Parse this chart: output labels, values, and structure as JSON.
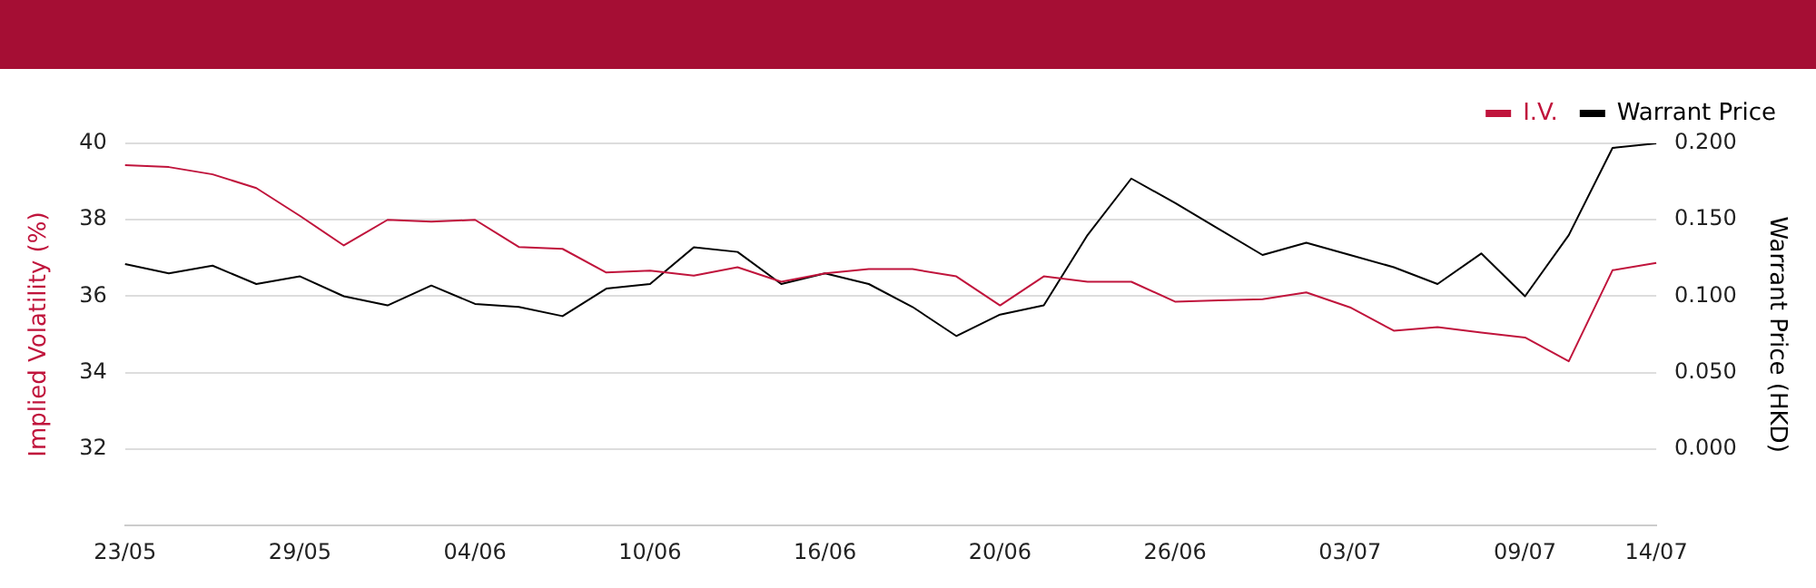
{
  "chart_data": {
    "type": "line",
    "categories": [
      "23/05",
      null,
      null,
      null,
      "29/05",
      null,
      null,
      null,
      "04/06",
      null,
      null,
      null,
      "10/06",
      null,
      null,
      null,
      "16/06",
      null,
      null,
      null,
      "20/06",
      null,
      null,
      null,
      "26/06",
      null,
      null,
      null,
      "03/07",
      null,
      null,
      null,
      "09/07",
      null,
      null,
      "14/07"
    ],
    "series": [
      {
        "name": "I.V.",
        "color": "#c0143c",
        "values": [
          39.43,
          39.38,
          39.19,
          38.83,
          38.1,
          37.33,
          38.0,
          37.95,
          38.0,
          37.29,
          37.24,
          36.62,
          36.67,
          36.54,
          36.76,
          36.38,
          36.6,
          36.71,
          36.71,
          36.52,
          35.76,
          36.52,
          36.38,
          36.38,
          35.86,
          35.89,
          35.92,
          36.1,
          35.71,
          35.1,
          35.19,
          35.05,
          34.92,
          34.3,
          36.68,
          36.87
        ]
      },
      {
        "name": "Warrant Price",
        "color": "#000000",
        "axis": "y2",
        "values": [
          0.121,
          0.115,
          0.12,
          0.108,
          0.113,
          0.1,
          0.094,
          0.107,
          0.095,
          0.093,
          0.087,
          0.105,
          0.108,
          0.132,
          0.129,
          0.108,
          0.115,
          0.108,
          0.093,
          0.074,
          0.088,
          0.094,
          0.14,
          0.177,
          0.161,
          0.144,
          0.127,
          0.135,
          0.127,
          0.119,
          0.108,
          0.128,
          0.1,
          0.14,
          0.197,
          0.2
        ]
      }
    ],
    "ylabel": "Implied Volatility (%)",
    "y2label": "Warrant Price (HKD)",
    "ylim": [
      30,
      40
    ],
    "yticks": [
      32,
      34,
      36,
      38,
      40
    ],
    "y2lim": [
      -0.05,
      0.2
    ],
    "y2ticks": [
      {
        "value": 0,
        "label": "0.000"
      },
      {
        "value": 0.05,
        "label": "0.050"
      },
      {
        "value": 0.1,
        "label": "0.100"
      },
      {
        "value": 0.15,
        "label": "0.150"
      },
      {
        "value": 0.2,
        "label": "0.200"
      }
    ],
    "grid": "y",
    "legend": "top right",
    "marker": "none",
    "line_style": "solid"
  }
}
